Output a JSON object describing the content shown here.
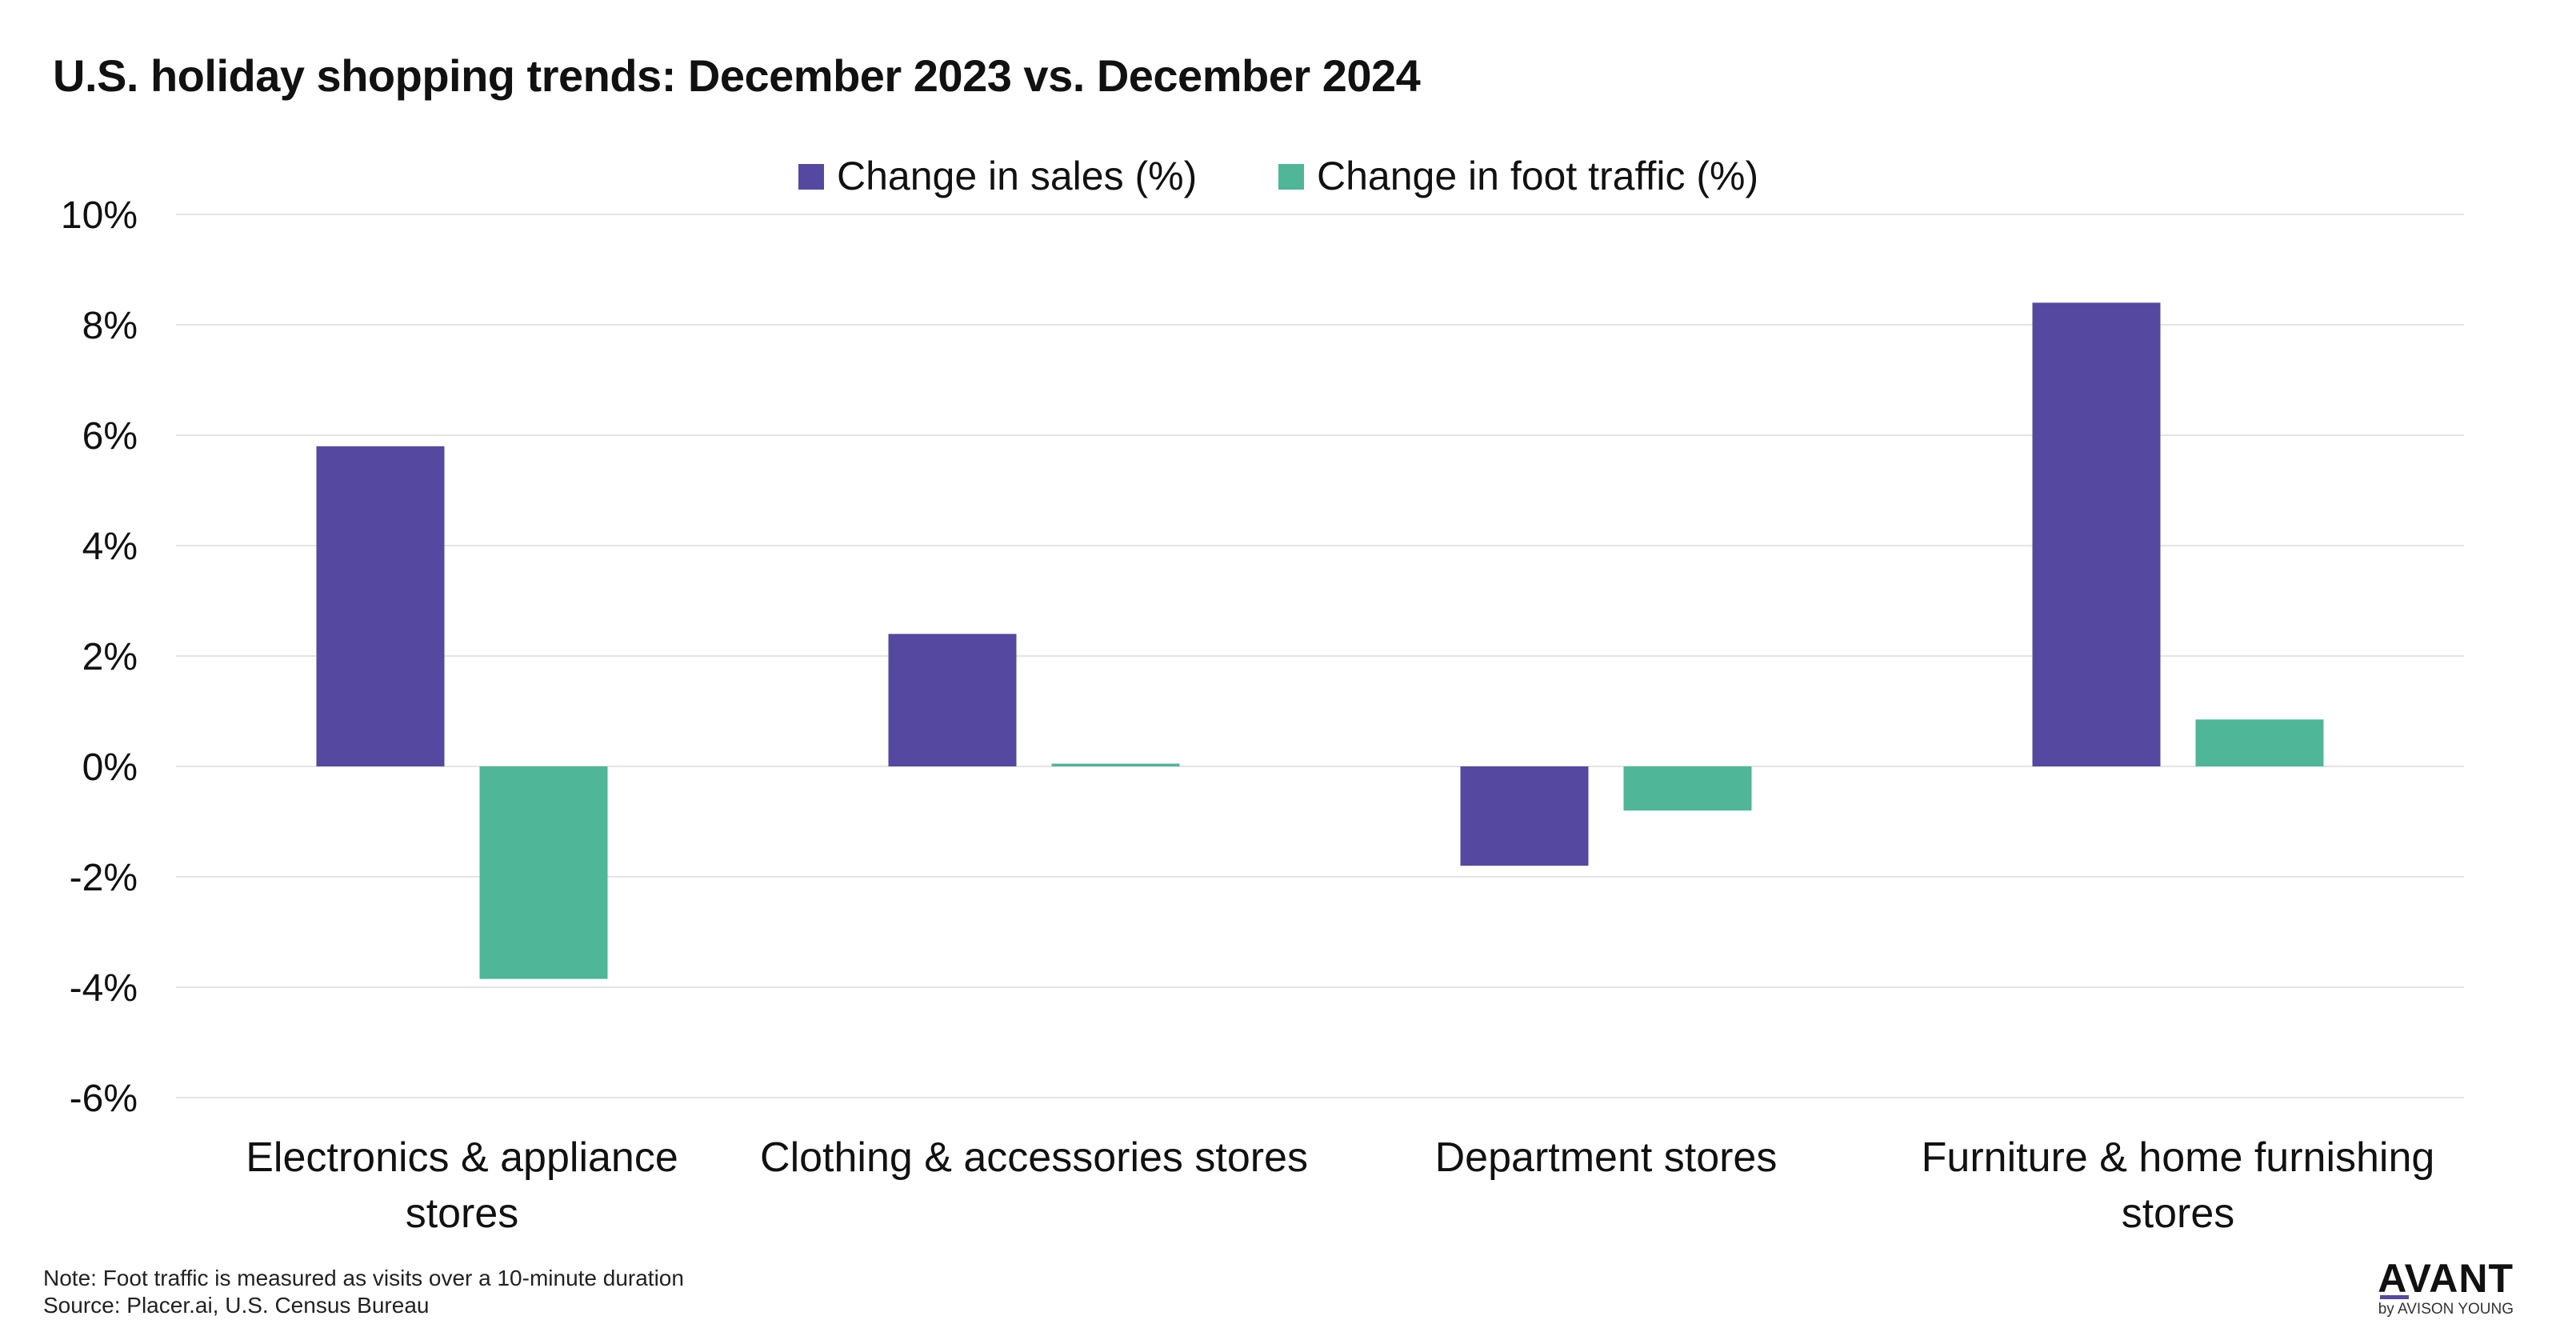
{
  "chart_data": {
    "type": "bar",
    "title": "U.S. holiday shopping trends: December 2023 vs. December 2024",
    "categories": [
      [
        "Electronics & appliance",
        "stores"
      ],
      [
        "Clothing & accessories stores"
      ],
      [
        "Department stores"
      ],
      [
        "Furniture & home furnishing",
        "stores"
      ]
    ],
    "series": [
      {
        "name": "Change in sales (%)",
        "color": "#5548a0",
        "values": [
          5.8,
          2.4,
          -1.8,
          8.4
        ]
      },
      {
        "name": "Change in foot traffic (%)",
        "color": "#4fb697",
        "values": [
          -3.85,
          0.05,
          -0.8,
          0.85
        ]
      }
    ],
    "ylim": [
      -6,
      10
    ],
    "yticks": [
      10,
      8,
      6,
      4,
      2,
      0,
      -2,
      -4,
      -6
    ],
    "ytick_format": "percent",
    "xlabel": "",
    "ylabel": "",
    "grid": true,
    "legend_position": "top-center"
  },
  "footer": {
    "note": "Note: Foot traffic is measured as visits over a 10-minute duration",
    "source": "Source: Placer.ai, U.S. Census Bureau"
  },
  "logo": {
    "name": "AVANT",
    "tagline": "by AVISON YOUNG"
  }
}
